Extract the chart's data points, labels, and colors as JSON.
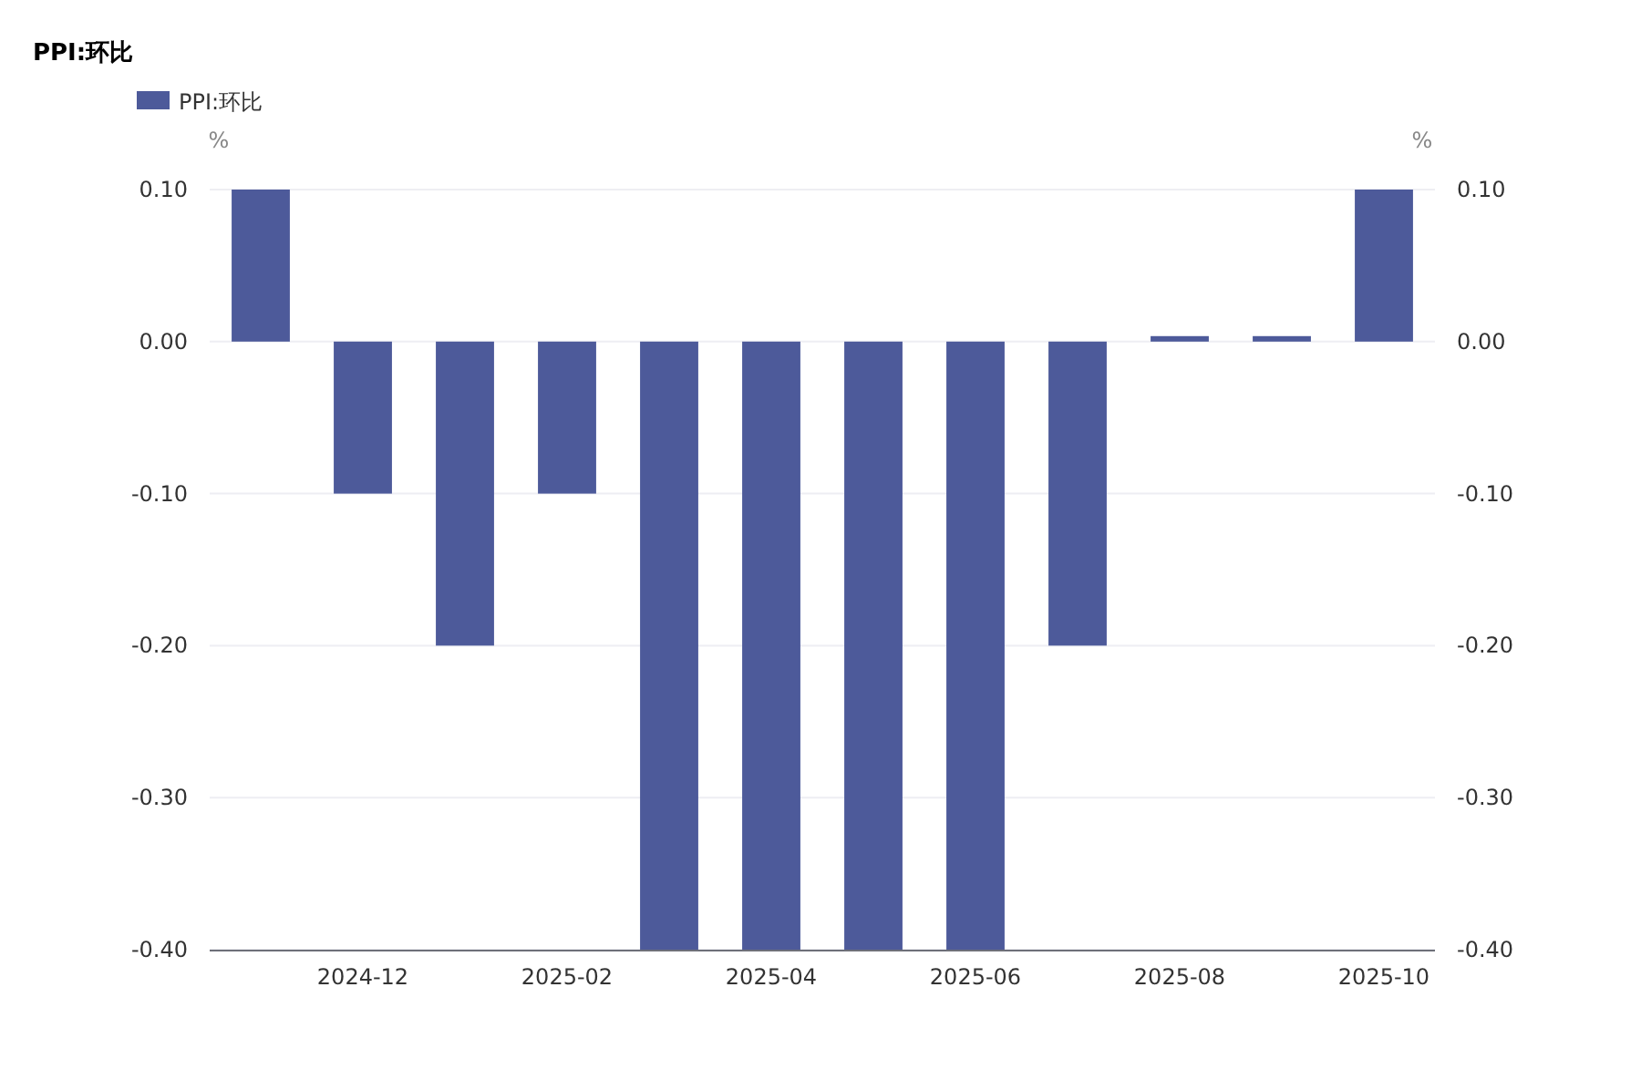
{
  "chart_data": {
    "type": "bar",
    "title": "PPI:环比",
    "categories": [
      null,
      "2024-12",
      null,
      "2025-02",
      null,
      "2025-04",
      null,
      "2025-06",
      null,
      "2025-08",
      null,
      "2025-10"
    ],
    "series": [
      {
        "name": "PPI:环比",
        "color": "#4d5a9a",
        "values": [
          0.1,
          -0.1,
          -0.2,
          -0.1,
          -0.4,
          -0.4,
          -0.4,
          -0.4,
          -0.2,
          0,
          0,
          0.1
        ]
      }
    ],
    "ylabel": "%",
    "y2label": "%",
    "ylim": [
      -0.4,
      0.1
    ],
    "yticks": [
      {
        "value": -0.4,
        "label": "-0.40"
      },
      {
        "value": -0.3,
        "label": "-0.30"
      },
      {
        "value": -0.2,
        "label": "-0.20"
      },
      {
        "value": -0.1,
        "label": "-0.10"
      },
      {
        "value": 0,
        "label": "0.00"
      },
      {
        "value": 0.1,
        "label": "0.10"
      }
    ],
    "y2lim": [
      -0.4,
      0.1
    ],
    "y2ticks": [
      {
        "value": -0.4,
        "label": "-0.40"
      },
      {
        "value": -0.3,
        "label": "-0.30"
      },
      {
        "value": -0.2,
        "label": "-0.20"
      },
      {
        "value": -0.1,
        "label": "-0.10"
      },
      {
        "value": 0,
        "label": "0.00"
      },
      {
        "value": 0.1,
        "label": "0.10"
      }
    ],
    "grid": "y",
    "legend": "top left"
  }
}
